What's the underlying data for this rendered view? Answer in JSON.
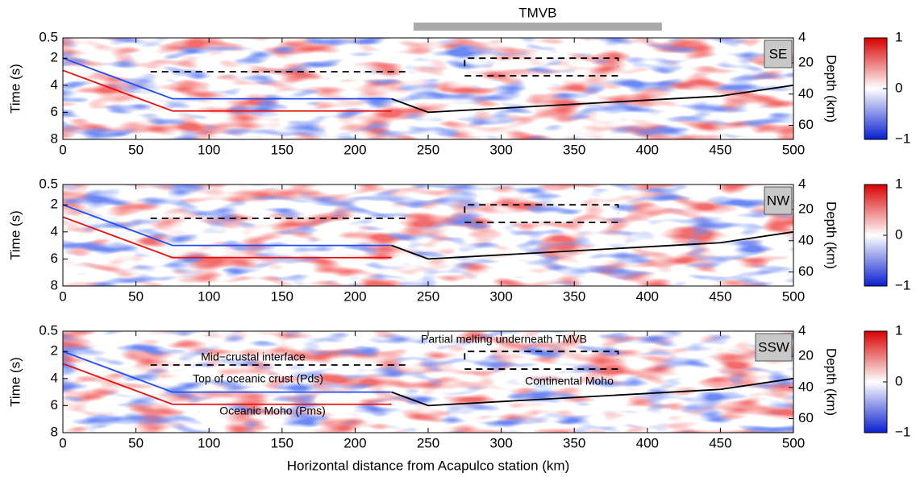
{
  "chart_data": [
    {
      "type": "line",
      "label": "SE",
      "ylabel": "Time (s)",
      "y2label": "Depth (km)",
      "top_bar": {
        "label": "TMVB",
        "range": [
          240,
          410
        ],
        "color": "#aaaaaa"
      },
      "xlim": [
        0,
        500
      ],
      "xticks": [
        0,
        50,
        100,
        150,
        200,
        250,
        300,
        350,
        400,
        450,
        500
      ],
      "ylim": [
        8,
        0.5
      ],
      "yticks": [
        0.5,
        2,
        4,
        6,
        8
      ],
      "y2lim": [
        69,
        4
      ],
      "y2ticks": [
        4,
        20,
        40,
        60
      ],
      "colorbar": {
        "colors": [
          "#0a1fd0",
          "#ffffff",
          "#d80000"
        ],
        "lim": [
          -1,
          1
        ],
        "ticks": [
          1,
          0,
          {
            "value": -1,
            "label": "−1"
          }
        ]
      },
      "series": [
        {
          "color": "#1f4ff0",
          "x": [
            0,
            75,
            225
          ],
          "values": [
            2,
            5,
            5
          ]
        },
        {
          "color": "#e81010",
          "x": [
            0,
            75,
            225
          ],
          "values": [
            2.9,
            5.9,
            5.9
          ]
        },
        {
          "color": "#000000",
          "x": [
            225,
            250,
            450,
            500
          ],
          "values": [
            5,
            6,
            4.8,
            4
          ]
        },
        {
          "color": "#000000",
          "dashed": true,
          "x": [
            60,
            235
          ],
          "values": [
            3,
            3
          ]
        },
        {
          "color": "#000000",
          "dashed": true,
          "x": [
            275,
            275,
            380,
            380
          ],
          "values": [
            2.6,
            2,
            2,
            2.6
          ]
        },
        {
          "color": "#000000",
          "dashed": true,
          "x": [
            275,
            380
          ],
          "values": [
            3.3,
            3.3
          ]
        }
      ]
    },
    {
      "type": "line",
      "label": "NW",
      "ylabel": "Time (s)",
      "y2label": "Depth (km)",
      "xlim": [
        0,
        500
      ],
      "xticks": [
        0,
        50,
        100,
        150,
        200,
        250,
        300,
        350,
        400,
        450,
        500
      ],
      "ylim": [
        8,
        0.5
      ],
      "yticks": [
        0.5,
        2,
        4,
        6,
        8
      ],
      "y2lim": [
        69,
        4
      ],
      "y2ticks": [
        4,
        20,
        40,
        60
      ],
      "colorbar": {
        "colors": [
          "#0a1fd0",
          "#ffffff",
          "#d80000"
        ],
        "lim": [
          -1,
          1
        ],
        "ticks": [
          1,
          0,
          {
            "value": -1,
            "label": "−1"
          }
        ]
      },
      "series": [
        {
          "color": "#1f4ff0",
          "x": [
            0,
            75,
            225
          ],
          "values": [
            2,
            5,
            5
          ]
        },
        {
          "color": "#e81010",
          "x": [
            0,
            75,
            225
          ],
          "values": [
            2.9,
            5.9,
            5.9
          ]
        },
        {
          "color": "#000000",
          "x": [
            225,
            250,
            450,
            500
          ],
          "values": [
            5,
            6,
            4.8,
            4
          ]
        },
        {
          "color": "#000000",
          "dashed": true,
          "x": [
            60,
            235
          ],
          "values": [
            3,
            3
          ]
        },
        {
          "color": "#000000",
          "dashed": true,
          "x": [
            275,
            275,
            380,
            380
          ],
          "values": [
            2.6,
            2,
            2,
            2.6
          ]
        },
        {
          "color": "#000000",
          "dashed": true,
          "x": [
            275,
            380
          ],
          "values": [
            3.3,
            3.3
          ]
        }
      ]
    },
    {
      "type": "line",
      "label": "SSW",
      "ylabel": "Time (s)",
      "y2label": "Depth (km)",
      "xlabel": "Horizontal distance from Acapulco station (km)",
      "annotations": [
        "Partial melting underneath TMVB",
        "Mid−crustal interface",
        "Top of oceanic crust (Pds)",
        "Continental Moho",
        "Oceanic Moho (Pms)"
      ],
      "xlim": [
        0,
        500
      ],
      "xticks": [
        0,
        50,
        100,
        150,
        200,
        250,
        300,
        350,
        400,
        450,
        500
      ],
      "ylim": [
        8,
        0.5
      ],
      "yticks": [
        0.5,
        2,
        4,
        6,
        8
      ],
      "y2lim": [
        69,
        4
      ],
      "y2ticks": [
        4,
        20,
        40,
        60
      ],
      "colorbar": {
        "colors": [
          "#0a1fd0",
          "#ffffff",
          "#d80000"
        ],
        "lim": [
          -1,
          1
        ],
        "ticks": [
          1,
          0,
          {
            "value": -1,
            "label": "−1"
          }
        ]
      },
      "series": [
        {
          "color": "#1f4ff0",
          "x": [
            0,
            75,
            225
          ],
          "values": [
            2,
            5,
            5
          ]
        },
        {
          "color": "#e81010",
          "x": [
            0,
            75,
            225
          ],
          "values": [
            2.9,
            5.9,
            5.9
          ]
        },
        {
          "color": "#000000",
          "x": [
            225,
            250,
            450,
            500
          ],
          "values": [
            5,
            6,
            4.8,
            4
          ]
        },
        {
          "color": "#000000",
          "dashed": true,
          "x": [
            60,
            235
          ],
          "values": [
            3,
            3
          ]
        },
        {
          "color": "#000000",
          "dashed": true,
          "x": [
            275,
            275,
            380,
            380
          ],
          "values": [
            2.6,
            2,
            2,
            2.6
          ]
        },
        {
          "color": "#000000",
          "dashed": true,
          "x": [
            275,
            380
          ],
          "values": [
            3.3,
            3.3
          ]
        }
      ]
    }
  ]
}
